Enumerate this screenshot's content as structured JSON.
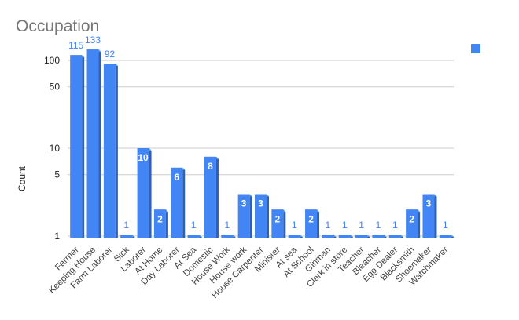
{
  "chart_data": {
    "type": "bar",
    "title": "Occupation",
    "xlabel": "",
    "ylabel": "Count",
    "scale": "log",
    "ylim": [
      1,
      150
    ],
    "yticks": [
      "1",
      "5",
      "10",
      "50",
      "100"
    ],
    "grid": true,
    "legend": "top-right",
    "categories": [
      "Farmer",
      "Keeping House",
      "Farm Laborer",
      "Sick",
      "Laborer",
      "At Home",
      "Day Laborer",
      "At Sea",
      "Domestic",
      "House Work",
      "House work",
      "House Carpenter",
      "Minister",
      "At sea",
      "At School",
      "Ginman",
      "Clerk in store",
      "Teacher",
      "Bleacher",
      "Egg Dealer",
      "Blacksmith",
      "Shoemaker",
      "Watchmaker"
    ],
    "series": [
      {
        "name": "",
        "color": "#4285f4",
        "values": [
          115,
          133,
          92,
          1,
          10,
          2,
          6,
          1,
          8,
          1,
          3,
          3,
          2,
          1,
          2,
          1,
          1,
          1,
          1,
          1,
          2,
          3,
          1
        ]
      }
    ]
  }
}
